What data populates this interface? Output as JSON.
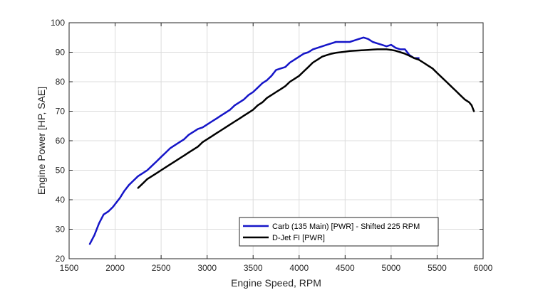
{
  "chart_data": {
    "type": "line",
    "title": "",
    "xlabel": "Engine Speed, RPM",
    "ylabel": "Engine Power [HP, SAE]",
    "xlim": [
      1500,
      6000
    ],
    "ylim": [
      20,
      100
    ],
    "xticks": [
      1500,
      2000,
      2500,
      3000,
      3500,
      4000,
      4500,
      5000,
      5500,
      6000
    ],
    "yticks": [
      20,
      30,
      40,
      50,
      60,
      70,
      80,
      90,
      100
    ],
    "grid": true,
    "legend_position": "bottom-right",
    "series": [
      {
        "name": "Carb (135 Main) [PWR] - Shifted 225 RPM",
        "color": "#1515c8",
        "x": [
          1725,
          1775,
          1825,
          1875,
          1925,
          1975,
          2050,
          2100,
          2150,
          2200,
          2250,
          2300,
          2350,
          2400,
          2450,
          2500,
          2550,
          2600,
          2650,
          2700,
          2750,
          2800,
          2850,
          2900,
          2950,
          3000,
          3050,
          3100,
          3150,
          3200,
          3250,
          3300,
          3350,
          3400,
          3450,
          3500,
          3550,
          3600,
          3650,
          3700,
          3750,
          3800,
          3850,
          3900,
          3950,
          4000,
          4050,
          4100,
          4150,
          4200,
          4250,
          4300,
          4350,
          4400,
          4450,
          4500,
          4550,
          4600,
          4650,
          4700,
          4750,
          4800,
          4850,
          4900,
          4950,
          5000,
          5050,
          5100,
          5150,
          5200,
          5250,
          5300
        ],
        "y": [
          25,
          28,
          32,
          35,
          36,
          37.5,
          40.5,
          43,
          45,
          46.5,
          48,
          49,
          50,
          51.5,
          53,
          54.5,
          56,
          57.5,
          58.5,
          59.5,
          60.5,
          62,
          63,
          64,
          64.5,
          65.5,
          66.5,
          67.5,
          68.5,
          69.5,
          70.5,
          72,
          73,
          74,
          75.5,
          76.5,
          78,
          79.5,
          80.5,
          82,
          84,
          84.5,
          85,
          86.5,
          87.5,
          88.5,
          89.5,
          90,
          91,
          91.5,
          92,
          92.5,
          93,
          93.5,
          93.5,
          93.5,
          93.5,
          94,
          94.5,
          95,
          94.5,
          93.5,
          93,
          92.5,
          92,
          92.5,
          91.5,
          91,
          91,
          89,
          88,
          88
        ]
      },
      {
        "name": "D-Jet FI [PWR]",
        "color": "#000000",
        "x": [
          2250,
          2300,
          2350,
          2400,
          2450,
          2500,
          2550,
          2600,
          2650,
          2700,
          2750,
          2800,
          2850,
          2900,
          2950,
          3000,
          3050,
          3100,
          3150,
          3200,
          3250,
          3300,
          3350,
          3400,
          3450,
          3500,
          3550,
          3600,
          3650,
          3700,
          3750,
          3800,
          3850,
          3900,
          3950,
          4000,
          4050,
          4100,
          4150,
          4200,
          4250,
          4300,
          4350,
          4400,
          4450,
          4500,
          4550,
          4600,
          4650,
          4700,
          4750,
          4800,
          4850,
          4900,
          4950,
          5000,
          5050,
          5100,
          5150,
          5200,
          5250,
          5300,
          5350,
          5400,
          5450,
          5500,
          5550,
          5600,
          5650,
          5700,
          5750,
          5800,
          5850,
          5875,
          5900
        ],
        "y": [
          44,
          45.5,
          47,
          48,
          49,
          50,
          51,
          52,
          53,
          54,
          55,
          56,
          57,
          58,
          59.5,
          60.5,
          61.5,
          62.5,
          63.5,
          64.5,
          65.5,
          66.5,
          67.5,
          68.5,
          69.5,
          70.5,
          72,
          73,
          74.5,
          75.5,
          76.5,
          77.5,
          78.5,
          80,
          81,
          82,
          83.5,
          85,
          86.5,
          87.5,
          88.5,
          89,
          89.5,
          89.8,
          90,
          90.2,
          90.4,
          90.5,
          90.6,
          90.7,
          90.8,
          90.9,
          91,
          91,
          91,
          90.8,
          90.5,
          90,
          89.5,
          88.8,
          88,
          87.5,
          86.5,
          85.5,
          84.5,
          83,
          81.5,
          80,
          78.5,
          77,
          75.5,
          74,
          73,
          72,
          70
        ]
      }
    ]
  }
}
